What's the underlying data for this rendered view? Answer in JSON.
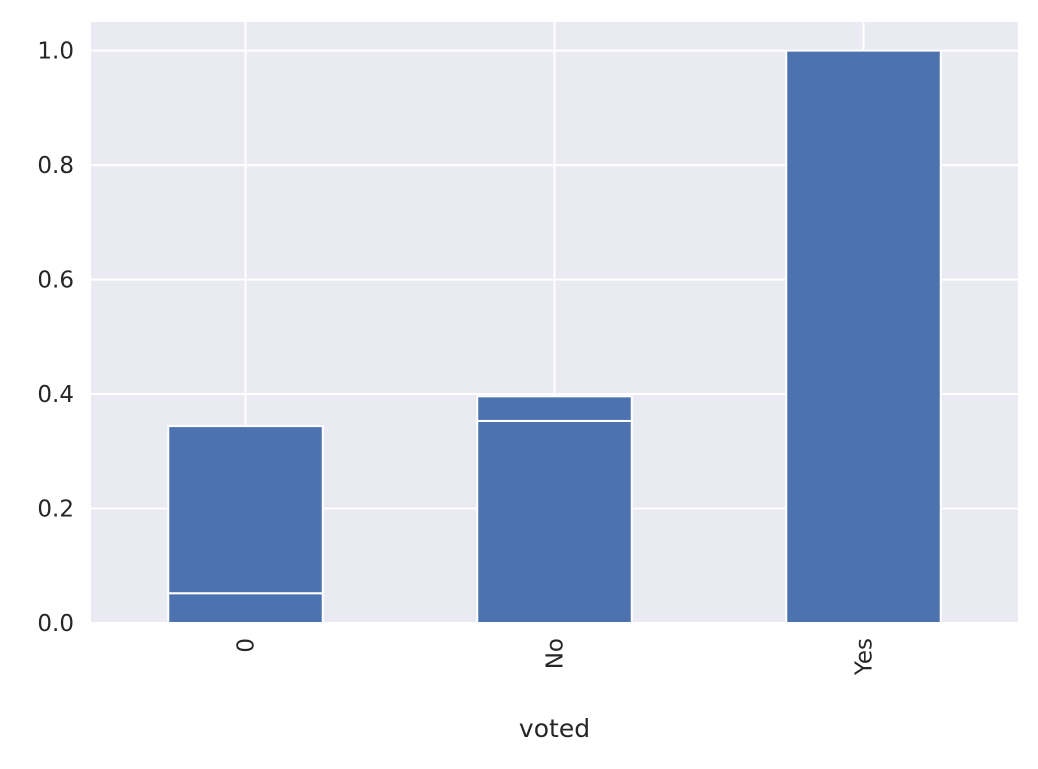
{
  "chart_data": {
    "type": "bar",
    "stacked": true,
    "title": "",
    "xlabel": "voted",
    "ylabel": "",
    "categories": [
      "0",
      "No",
      "Yes"
    ],
    "series": [
      {
        "values": [
          0.052,
          0.353,
          1.0
        ]
      },
      {
        "values": [
          0.292,
          0.043,
          0.0
        ]
      }
    ],
    "ylim": [
      0,
      1.05
    ],
    "yticks": [
      0.0,
      0.2,
      0.4,
      0.6,
      0.8,
      1.0
    ],
    "ytick_labels": [
      "0.0",
      "0.2",
      "0.4",
      "0.6",
      "0.8",
      "1.0"
    ],
    "grid": true,
    "legend": "none",
    "x_tick_rotation": 90,
    "colors": {
      "bar": "#4c72b0",
      "background": "#eaeaf2",
      "grid": "#ffffff",
      "bar_edge": "#ffffff",
      "text": "#262626"
    }
  }
}
